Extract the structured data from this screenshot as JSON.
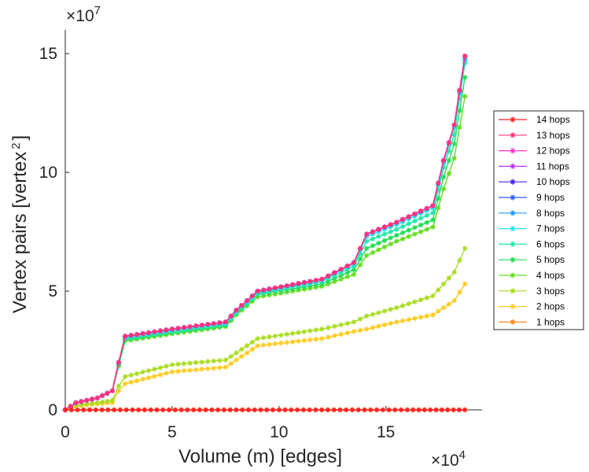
{
  "chart_data": {
    "type": "line",
    "title": "",
    "xlabel": "Volume (m) [edges]",
    "ylabel": "Vertex pairs [vertex",
    "ylabel_sup": "2",
    "ylabel_close": "]",
    "x_exponent_base": "×10",
    "x_exponent": "4",
    "y_exponent_base": "×10",
    "y_exponent": "7",
    "xlim": [
      0,
      19.5
    ],
    "ylim": [
      0,
      16
    ],
    "xticks": [
      0,
      5,
      10,
      15
    ],
    "xtick_labels": [
      "0",
      "5",
      "10",
      "15"
    ],
    "yticks": [
      0,
      5,
      10,
      15
    ],
    "ytick_labels": [
      "0",
      "5",
      "10",
      "15"
    ],
    "x_units": "×10^4 edges",
    "y_units": "×10^7 vertex^2",
    "legend_position": "right-outside",
    "series": [
      {
        "name": "14 hops",
        "color": "#ff2020",
        "points": [
          [
            0,
            0
          ],
          [
            4,
            0
          ],
          [
            8,
            0
          ],
          [
            12,
            0
          ],
          [
            16,
            0
          ],
          [
            18.7,
            0
          ]
        ]
      },
      {
        "name": "13 hops",
        "color": "#ff3377",
        "points": [
          [
            0,
            0
          ],
          [
            0.5,
            0.3
          ],
          [
            1.5,
            0.5
          ],
          [
            2.2,
            0.8
          ],
          [
            2.5,
            2.0
          ],
          [
            2.8,
            3.1
          ],
          [
            5,
            3.4
          ],
          [
            7.5,
            3.7
          ],
          [
            8,
            4.2
          ],
          [
            9,
            5.0
          ],
          [
            12,
            5.5
          ],
          [
            13.5,
            6.2
          ],
          [
            14.1,
            7.4
          ],
          [
            15.5,
            7.9
          ],
          [
            17.2,
            8.6
          ],
          [
            17.7,
            10.5
          ],
          [
            18.2,
            12.0
          ],
          [
            18.7,
            14.9
          ]
        ]
      },
      {
        "name": "12 hops",
        "color": "#ff33cc",
        "points": [
          [
            0,
            0
          ],
          [
            0.5,
            0.3
          ],
          [
            1.5,
            0.5
          ],
          [
            2.2,
            0.8
          ],
          [
            2.5,
            2.0
          ],
          [
            2.8,
            3.1
          ],
          [
            5,
            3.4
          ],
          [
            7.5,
            3.7
          ],
          [
            8,
            4.2
          ],
          [
            9,
            5.0
          ],
          [
            12,
            5.5
          ],
          [
            13.5,
            6.2
          ],
          [
            14.1,
            7.4
          ],
          [
            15.5,
            7.9
          ],
          [
            17.2,
            8.6
          ],
          [
            17.7,
            10.5
          ],
          [
            18.2,
            12.0
          ],
          [
            18.7,
            14.9
          ]
        ]
      },
      {
        "name": "11 hops",
        "color": "#bb33ff",
        "points": [
          [
            0,
            0
          ],
          [
            0.5,
            0.3
          ],
          [
            1.5,
            0.5
          ],
          [
            2.2,
            0.8
          ],
          [
            2.5,
            2.0
          ],
          [
            2.8,
            3.1
          ],
          [
            5,
            3.4
          ],
          [
            7.5,
            3.7
          ],
          [
            8,
            4.2
          ],
          [
            9,
            5.0
          ],
          [
            12,
            5.5
          ],
          [
            13.5,
            6.2
          ],
          [
            14.1,
            7.4
          ],
          [
            15.5,
            7.9
          ],
          [
            17.2,
            8.6
          ],
          [
            17.7,
            10.5
          ],
          [
            18.2,
            12.0
          ],
          [
            18.7,
            14.9
          ]
        ]
      },
      {
        "name": "10 hops",
        "color": "#4422ee",
        "points": [
          [
            0,
            0
          ],
          [
            0.5,
            0.3
          ],
          [
            1.5,
            0.5
          ],
          [
            2.2,
            0.8
          ],
          [
            2.5,
            2.0
          ],
          [
            2.8,
            3.1
          ],
          [
            5,
            3.4
          ],
          [
            7.5,
            3.7
          ],
          [
            8,
            4.2
          ],
          [
            9,
            5.0
          ],
          [
            12,
            5.5
          ],
          [
            13.5,
            6.2
          ],
          [
            14.1,
            7.4
          ],
          [
            15.5,
            7.9
          ],
          [
            17.2,
            8.6
          ],
          [
            17.7,
            10.5
          ],
          [
            18.2,
            12.0
          ],
          [
            18.7,
            14.9
          ]
        ]
      },
      {
        "name": "9 hops",
        "color": "#2a5cff",
        "points": [
          [
            0,
            0
          ],
          [
            0.5,
            0.3
          ],
          [
            1.5,
            0.5
          ],
          [
            2.2,
            0.8
          ],
          [
            2.5,
            2.0
          ],
          [
            2.8,
            3.1
          ],
          [
            5,
            3.4
          ],
          [
            7.5,
            3.7
          ],
          [
            8,
            4.2
          ],
          [
            9,
            5.0
          ],
          [
            12,
            5.5
          ],
          [
            13.5,
            6.2
          ],
          [
            14.1,
            7.4
          ],
          [
            15.5,
            7.9
          ],
          [
            17.2,
            8.6
          ],
          [
            17.7,
            10.5
          ],
          [
            18.2,
            12.0
          ],
          [
            18.7,
            14.9
          ]
        ]
      },
      {
        "name": "8 hops",
        "color": "#1e9bff",
        "points": [
          [
            0,
            0
          ],
          [
            0.5,
            0.3
          ],
          [
            1.5,
            0.5
          ],
          [
            2.2,
            0.8
          ],
          [
            2.5,
            2.0
          ],
          [
            2.8,
            3.1
          ],
          [
            5,
            3.4
          ],
          [
            7.5,
            3.7
          ],
          [
            8,
            4.2
          ],
          [
            9,
            5.0
          ],
          [
            12,
            5.5
          ],
          [
            13.5,
            6.2
          ],
          [
            14.1,
            7.4
          ],
          [
            15.5,
            7.9
          ],
          [
            17.2,
            8.6
          ],
          [
            17.7,
            10.5
          ],
          [
            18.2,
            12.0
          ],
          [
            18.7,
            14.8
          ]
        ]
      },
      {
        "name": "7 hops",
        "color": "#22e0ee",
        "points": [
          [
            0,
            0
          ],
          [
            0.5,
            0.3
          ],
          [
            1.5,
            0.5
          ],
          [
            2.2,
            0.8
          ],
          [
            2.5,
            2.0
          ],
          [
            2.8,
            3.05
          ],
          [
            5,
            3.35
          ],
          [
            7.5,
            3.65
          ],
          [
            8,
            4.15
          ],
          [
            9,
            4.95
          ],
          [
            12,
            5.45
          ],
          [
            13.5,
            6.15
          ],
          [
            14.1,
            7.3
          ],
          [
            15.5,
            7.8
          ],
          [
            17.2,
            8.5
          ],
          [
            17.7,
            10.4
          ],
          [
            18.2,
            11.9
          ],
          [
            18.7,
            14.7
          ]
        ]
      },
      {
        "name": "6 hops",
        "color": "#22e8aa",
        "points": [
          [
            0,
            0
          ],
          [
            0.5,
            0.3
          ],
          [
            1.5,
            0.5
          ],
          [
            2.2,
            0.8
          ],
          [
            2.5,
            1.95
          ],
          [
            2.8,
            3.0
          ],
          [
            5,
            3.3
          ],
          [
            7.5,
            3.6
          ],
          [
            8,
            4.1
          ],
          [
            9,
            4.9
          ],
          [
            12,
            5.4
          ],
          [
            13.5,
            6.05
          ],
          [
            14.1,
            7.1
          ],
          [
            15.5,
            7.6
          ],
          [
            17.2,
            8.3
          ],
          [
            17.7,
            10.2
          ],
          [
            18.2,
            11.6
          ],
          [
            18.7,
            14.6
          ]
        ]
      },
      {
        "name": "5 hops",
        "color": "#22dd55",
        "points": [
          [
            0,
            0
          ],
          [
            0.5,
            0.3
          ],
          [
            1.5,
            0.5
          ],
          [
            2.2,
            0.8
          ],
          [
            2.5,
            1.9
          ],
          [
            2.8,
            2.95
          ],
          [
            5,
            3.25
          ],
          [
            7.5,
            3.55
          ],
          [
            8,
            4.05
          ],
          [
            9,
            4.85
          ],
          [
            12,
            5.3
          ],
          [
            13.5,
            5.9
          ],
          [
            14.1,
            6.8
          ],
          [
            15.5,
            7.35
          ],
          [
            17.2,
            8.0
          ],
          [
            17.7,
            9.8
          ],
          [
            18.2,
            11.2
          ],
          [
            18.7,
            14.0
          ]
        ]
      },
      {
        "name": "4 hops",
        "color": "#66dd22",
        "points": [
          [
            0,
            0
          ],
          [
            0.5,
            0.3
          ],
          [
            1.5,
            0.5
          ],
          [
            2.2,
            0.8
          ],
          [
            2.5,
            1.85
          ],
          [
            2.8,
            2.9
          ],
          [
            5,
            3.2
          ],
          [
            7.5,
            3.5
          ],
          [
            8,
            4.0
          ],
          [
            9,
            4.75
          ],
          [
            12,
            5.2
          ],
          [
            13.5,
            5.7
          ],
          [
            14.1,
            6.5
          ],
          [
            15.5,
            7.1
          ],
          [
            17.2,
            7.7
          ],
          [
            17.7,
            9.3
          ],
          [
            18.2,
            10.6
          ],
          [
            18.7,
            13.2
          ]
        ]
      },
      {
        "name": "3 hops",
        "color": "#aadd22",
        "points": [
          [
            0,
            0
          ],
          [
            0.5,
            0.2
          ],
          [
            1.5,
            0.3
          ],
          [
            2.2,
            0.4
          ],
          [
            2.5,
            1.0
          ],
          [
            2.8,
            1.4
          ],
          [
            5,
            1.9
          ],
          [
            7.5,
            2.1
          ],
          [
            8,
            2.4
          ],
          [
            9,
            3.0
          ],
          [
            12,
            3.4
          ],
          [
            13.5,
            3.7
          ],
          [
            14.1,
            3.95
          ],
          [
            15.5,
            4.3
          ],
          [
            17.2,
            4.8
          ],
          [
            17.7,
            5.3
          ],
          [
            18.2,
            5.8
          ],
          [
            18.7,
            6.8
          ]
        ]
      },
      {
        "name": "2 hops",
        "color": "#ffcc22",
        "points": [
          [
            0,
            0
          ],
          [
            0.5,
            0.15
          ],
          [
            1.5,
            0.25
          ],
          [
            2.2,
            0.3
          ],
          [
            2.5,
            0.8
          ],
          [
            2.8,
            1.1
          ],
          [
            5,
            1.6
          ],
          [
            7.5,
            1.8
          ],
          [
            8,
            2.1
          ],
          [
            9,
            2.7
          ],
          [
            12,
            3.0
          ],
          [
            13.5,
            3.3
          ],
          [
            14.1,
            3.4
          ],
          [
            15.5,
            3.7
          ],
          [
            17.2,
            4.0
          ],
          [
            17.7,
            4.3
          ],
          [
            18.2,
            4.6
          ],
          [
            18.7,
            5.3
          ]
        ]
      },
      {
        "name": "1 hops",
        "color": "#ff8822",
        "points": [
          [
            0,
            0
          ],
          [
            4,
            0
          ],
          [
            8,
            0
          ],
          [
            12,
            0
          ],
          [
            16,
            0
          ],
          [
            18.7,
            0
          ]
        ]
      }
    ]
  }
}
